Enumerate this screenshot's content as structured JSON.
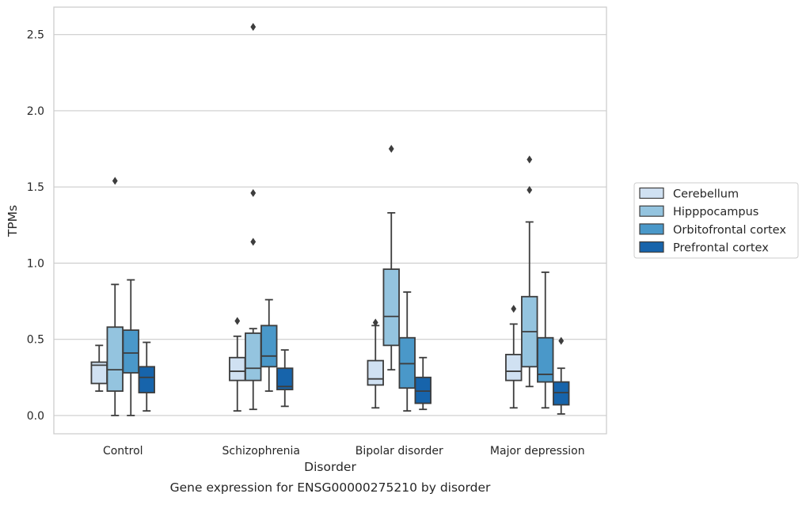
{
  "chart_data": {
    "type": "box",
    "caption": "Gene expression for ENSG00000275210 by disorder",
    "xlabel": "Disorder",
    "ylabel": "TPMs",
    "ylim": [
      -0.12,
      2.68
    ],
    "yticks": [
      "0.0",
      "0.5",
      "1.0",
      "1.5",
      "2.0",
      "2.5"
    ],
    "ytick_values": [
      0.0,
      0.5,
      1.0,
      1.5,
      2.0,
      2.5
    ],
    "grid": "horizontal",
    "legend_position": "right",
    "categories": [
      "Control",
      "Schizophrenia",
      "Bipolar disorder",
      "Major depression"
    ],
    "series": [
      {
        "name": "Cerebellum",
        "color": "#d0e1f2",
        "boxes": [
          {
            "whislo": 0.16,
            "q1": 0.21,
            "med": 0.33,
            "q3": 0.35,
            "whishi": 0.46,
            "fliers": []
          },
          {
            "whislo": 0.03,
            "q1": 0.23,
            "med": 0.29,
            "q3": 0.38,
            "whishi": 0.52,
            "fliers": [
              0.62
            ]
          },
          {
            "whislo": 0.05,
            "q1": 0.2,
            "med": 0.24,
            "q3": 0.36,
            "whishi": 0.59,
            "fliers": [
              0.61
            ]
          },
          {
            "whislo": 0.05,
            "q1": 0.23,
            "med": 0.29,
            "q3": 0.4,
            "whishi": 0.6,
            "fliers": [
              0.7
            ]
          }
        ]
      },
      {
        "name": "Hipppocampus",
        "color": "#94c4df",
        "boxes": [
          {
            "whislo": 0.0,
            "q1": 0.16,
            "med": 0.3,
            "q3": 0.58,
            "whishi": 0.86,
            "fliers": [
              1.54
            ]
          },
          {
            "whislo": 0.04,
            "q1": 0.23,
            "med": 0.31,
            "q3": 0.54,
            "whishi": 0.57,
            "fliers": [
              1.14,
              1.46,
              2.55
            ]
          },
          {
            "whislo": 0.3,
            "q1": 0.46,
            "med": 0.65,
            "q3": 0.96,
            "whishi": 1.33,
            "fliers": [
              1.75
            ]
          },
          {
            "whislo": 0.19,
            "q1": 0.32,
            "med": 0.55,
            "q3": 0.78,
            "whishi": 1.27,
            "fliers": [
              1.48,
              1.68
            ]
          }
        ]
      },
      {
        "name": "Orbitofrontal cortex",
        "color": "#4a98c9",
        "boxes": [
          {
            "whislo": 0.0,
            "q1": 0.28,
            "med": 0.41,
            "q3": 0.56,
            "whishi": 0.89,
            "fliers": []
          },
          {
            "whislo": 0.16,
            "q1": 0.32,
            "med": 0.39,
            "q3": 0.59,
            "whishi": 0.76,
            "fliers": []
          },
          {
            "whislo": 0.03,
            "q1": 0.18,
            "med": 0.34,
            "q3": 0.51,
            "whishi": 0.81,
            "fliers": []
          },
          {
            "whislo": 0.05,
            "q1": 0.22,
            "med": 0.27,
            "q3": 0.51,
            "whishi": 0.94,
            "fliers": []
          }
        ]
      },
      {
        "name": "Prefrontal cortex",
        "color": "#1764ab",
        "boxes": [
          {
            "whislo": 0.03,
            "q1": 0.15,
            "med": 0.25,
            "q3": 0.32,
            "whishi": 0.48,
            "fliers": []
          },
          {
            "whislo": 0.06,
            "q1": 0.17,
            "med": 0.19,
            "q3": 0.31,
            "whishi": 0.43,
            "fliers": []
          },
          {
            "whislo": 0.04,
            "q1": 0.08,
            "med": 0.16,
            "q3": 0.25,
            "whishi": 0.38,
            "fliers": []
          },
          {
            "whislo": 0.01,
            "q1": 0.07,
            "med": 0.15,
            "q3": 0.22,
            "whishi": 0.31,
            "fliers": [
              0.49
            ]
          }
        ]
      }
    ]
  }
}
